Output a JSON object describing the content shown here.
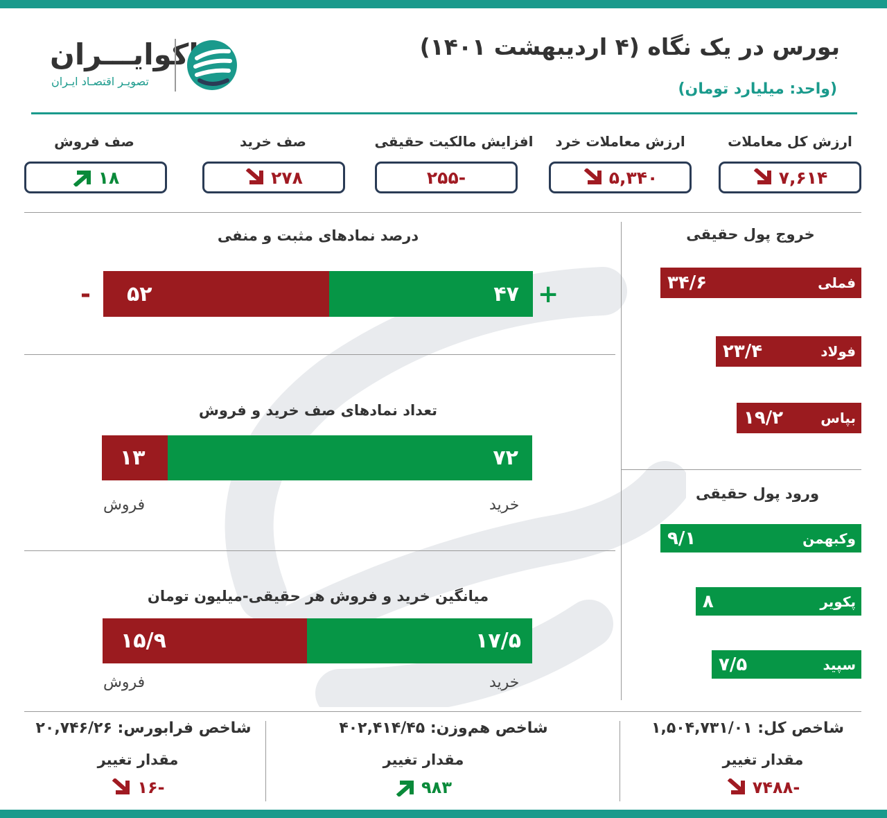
{
  "header": {
    "title": "بورس در یک نگاه (۴ اردیبهشت ۱۴۰۱)",
    "unit": "(واحد: میلیارد تومان)"
  },
  "logo": {
    "name": "اکوایـــران",
    "tagline": "تصویـر اقتصـاد ایـران"
  },
  "stats": [
    {
      "label": "ارزش کل معاملات",
      "value": "۷,۶۱۴",
      "trend": "down"
    },
    {
      "label": "ارزش معاملات خرد",
      "value": "۵,۳۴۰",
      "trend": "down"
    },
    {
      "label": "افزایش مالکیت حقیقی",
      "value": "-۲۵۵",
      "trend": "none"
    },
    {
      "label": "صف خرید",
      "value": "۲۷۸",
      "trend": "down"
    },
    {
      "label": "صف فروش",
      "value": "۱۸",
      "trend": "up"
    }
  ],
  "colors": {
    "accent": "#1a9a8c",
    "negative": "#9b1b1f",
    "positive": "#069646",
    "box_border": "#2a3b55"
  },
  "symbols_pct": {
    "title": "درصد نمادهای مثبت و منفی",
    "plus_sign": "+",
    "minus_sign": "-",
    "negative_value": "۵۲",
    "positive_value": "۴۷",
    "negative": 52,
    "positive": 47
  },
  "queue_count": {
    "title": "تعداد نمادهای صف خرید و فروش",
    "sell_value": "۱۳",
    "buy_value": "۷۲",
    "sell": 13,
    "buy": 72,
    "sell_label": "فروش",
    "buy_label": "خرید"
  },
  "avg_trade": {
    "title": "میانگین خرید و فروش هر حقیقی-میلیون تومان",
    "sell_value": "۱۵/۹",
    "buy_value": "۱۷/۵",
    "sell": 15.9,
    "buy": 17.5,
    "sell_label": "فروش",
    "buy_label": "خرید"
  },
  "outflow": {
    "title": "خروج پول حقیقی",
    "items": [
      {
        "name": "فملی",
        "value": "۳۴/۶",
        "amount": 34.6
      },
      {
        "name": "فولاد",
        "value": "۲۳/۴",
        "amount": 23.4
      },
      {
        "name": "بپاس",
        "value": "۱۹/۲",
        "amount": 19.2
      }
    ]
  },
  "inflow": {
    "title": "ورود پول حقیقی",
    "items": [
      {
        "name": "وکبهمن",
        "value": "۹/۱",
        "amount": 9.1
      },
      {
        "name": "پکویر",
        "value": "۸",
        "amount": 8
      },
      {
        "name": "سپید",
        "value": "۷/۵",
        "amount": 7.5
      }
    ]
  },
  "indices": [
    {
      "title": "شاخص کل: ۱,۵۰۴,۷۳۱/۰۱",
      "change_label": "مقدار تغییر",
      "change": "-۷۴۸۸",
      "trend": "down"
    },
    {
      "title": "شاخص هم‌وزن: ۴۰۲,۴۱۴/۴۵",
      "change_label": "مقدار تغییر",
      "change": "۹۸۳",
      "trend": "up"
    },
    {
      "title": "شاخص فرابورس: ۲۰,۷۴۶/۲۶",
      "change_label": "مقدار تغییر",
      "change": "-۱۶",
      "trend": "down"
    }
  ]
}
